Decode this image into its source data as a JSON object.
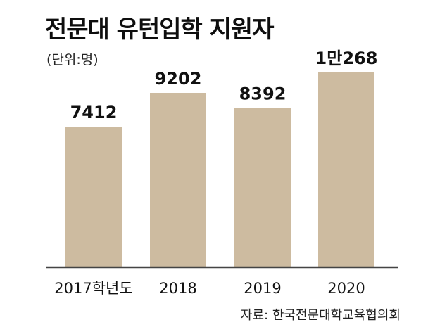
{
  "chart_data": {
    "type": "bar",
    "title": "전문대 유턴입학 지원자",
    "unit_note": "(단위:명)",
    "categories": [
      "2017학년도",
      "2018",
      "2019",
      "2020"
    ],
    "values": [
      7412,
      9202,
      8392,
      10268
    ],
    "data_labels": [
      "7412",
      "9202",
      "8392",
      "1만268"
    ],
    "source": "자료: 한국전문대학교육협의회",
    "ylim": [
      0,
      10268
    ],
    "grid": false,
    "legend": "none",
    "bar_color": "#cdbba0",
    "axis_color": "#444444"
  }
}
